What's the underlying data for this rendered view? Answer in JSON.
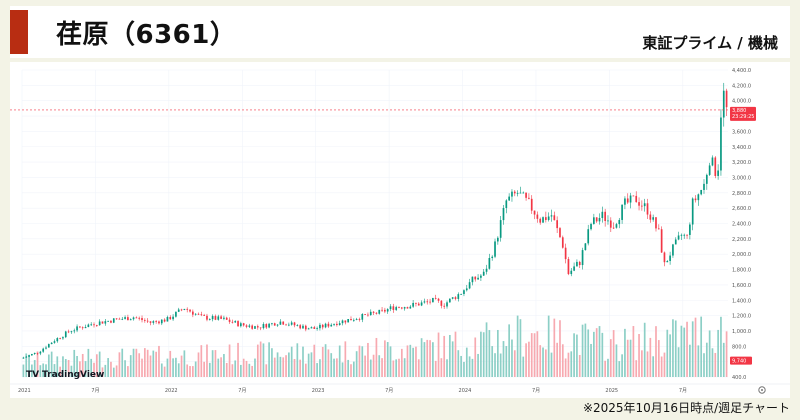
{
  "header": {
    "title": "荏原（6361）",
    "market_sector": "東証プライム / 機械"
  },
  "footnote": "※2025年10月16日時点/週足チャート",
  "chart_data": {
    "type": "candlestick",
    "title": "荏原（6361）",
    "interval": "weekly",
    "xlabel": "",
    "ylabel": "",
    "ylim": [
      400,
      4400
    ],
    "y_ticks": [
      400,
      600,
      800,
      1000,
      1200,
      1400,
      1600,
      1800,
      2000,
      2200,
      2400,
      2600,
      2800,
      3000,
      3200,
      3400,
      3600,
      3800,
      4000,
      4200,
      4400
    ],
    "y_tick_labels": [
      "400.0",
      "600.0",
      "800.0",
      "1,000.0",
      "1,200.0",
      "1,400.0",
      "1,600.0",
      "1,800.0",
      "2,000.0",
      "2,200.0",
      "2,400.0",
      "2,600.0",
      "2,800.0",
      "3,000.0",
      "3,200.0",
      "3,400.0",
      "3,600.0",
      "3,800.0",
      "4,000.0",
      "4,200.0",
      "4,400.0"
    ],
    "x_ticks": [
      {
        "label": "2021",
        "week": 0
      },
      {
        "label": "7月",
        "week": 26
      },
      {
        "label": "2022",
        "week": 52
      },
      {
        "label": "7月",
        "week": 78
      },
      {
        "label": "2023",
        "week": 104
      },
      {
        "label": "7月",
        "week": 130
      },
      {
        "label": "2024",
        "week": 156
      },
      {
        "label": "7月",
        "week": 182
      },
      {
        "label": "2025",
        "week": 208
      },
      {
        "label": "7月",
        "week": 234
      }
    ],
    "total_weeks": 250,
    "price_path_anchors": [
      [
        0,
        640
      ],
      [
        6,
        720
      ],
      [
        12,
        880
      ],
      [
        18,
        1010
      ],
      [
        26,
        1100
      ],
      [
        34,
        1150
      ],
      [
        40,
        1180
      ],
      [
        46,
        1110
      ],
      [
        52,
        1150
      ],
      [
        58,
        1300
      ],
      [
        64,
        1180
      ],
      [
        72,
        1150
      ],
      [
        78,
        1080
      ],
      [
        84,
        1050
      ],
      [
        92,
        1120
      ],
      [
        100,
        1050
      ],
      [
        104,
        1030
      ],
      [
        112,
        1110
      ],
      [
        120,
        1180
      ],
      [
        128,
        1250
      ],
      [
        132,
        1310
      ],
      [
        138,
        1330
      ],
      [
        146,
        1390
      ],
      [
        150,
        1350
      ],
      [
        156,
        1500
      ],
      [
        160,
        1660
      ],
      [
        164,
        1740
      ],
      [
        168,
        2120
      ],
      [
        172,
        2690
      ],
      [
        176,
        2800
      ],
      [
        180,
        2650
      ],
      [
        184,
        2450
      ],
      [
        188,
        2510
      ],
      [
        192,
        2120
      ],
      [
        194,
        1750
      ],
      [
        198,
        1900
      ],
      [
        202,
        2400
      ],
      [
        206,
        2500
      ],
      [
        210,
        2390
      ],
      [
        214,
        2650
      ],
      [
        218,
        2720
      ],
      [
        222,
        2580
      ],
      [
        226,
        2270
      ],
      [
        228,
        1860
      ],
      [
        230,
        2010
      ],
      [
        234,
        2250
      ],
      [
        236,
        2220
      ],
      [
        238,
        2660
      ],
      [
        242,
        2900
      ],
      [
        244,
        3250
      ],
      [
        246,
        3090
      ],
      [
        247,
        3150
      ],
      [
        248,
        3850
      ],
      [
        249,
        4080
      ],
      [
        250,
        3880
      ]
    ],
    "volume_path_anchors": [
      [
        0,
        650
      ],
      [
        40,
        700
      ],
      [
        80,
        750
      ],
      [
        120,
        800
      ],
      [
        156,
        900
      ],
      [
        180,
        1100
      ],
      [
        210,
        900
      ],
      [
        240,
        1100
      ],
      [
        250,
        1150
      ]
    ],
    "last_price": {
      "label": "3,880",
      "value": 3880,
      "countdown": "23:29:25",
      "color": "#f23645"
    },
    "volume_label": {
      "label": "9,740",
      "value": 9740,
      "color": "#f23645"
    },
    "up_color": "#089981",
    "down_color": "#f23645",
    "volume_up_color": "#8ccfc6",
    "volume_down_color": "#f7a9b0",
    "watermark": "TradingView",
    "settings_icon": "gear-icon"
  }
}
